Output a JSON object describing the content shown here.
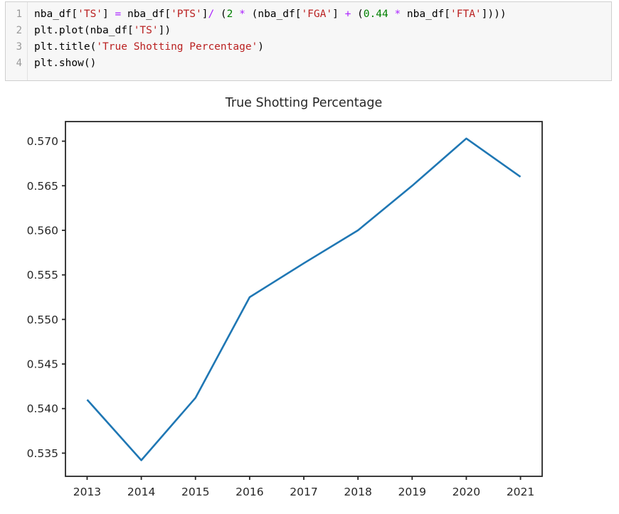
{
  "colors": {
    "plain": "#000000",
    "string": "#ba2121",
    "operator": "#aa22ff",
    "number": "#008000",
    "line_number": "#999999",
    "accent_line": "#1f77b4",
    "axis": "#262626",
    "cell_background": "#f7f7f7",
    "cell_border": "#cfcfcf"
  },
  "code_cell": {
    "lines": [
      {
        "number": "1",
        "tokens": [
          {
            "t": "nba_df[",
            "c": "plain"
          },
          {
            "t": "'TS'",
            "c": "string"
          },
          {
            "t": "] ",
            "c": "plain"
          },
          {
            "t": "=",
            "c": "operator"
          },
          {
            "t": " nba_df[",
            "c": "plain"
          },
          {
            "t": "'PTS'",
            "c": "string"
          },
          {
            "t": "]",
            "c": "plain"
          },
          {
            "t": "/",
            "c": "operator"
          },
          {
            "t": " (",
            "c": "plain"
          },
          {
            "t": "2",
            "c": "number"
          },
          {
            "t": " ",
            "c": "plain"
          },
          {
            "t": "*",
            "c": "operator"
          },
          {
            "t": " (nba_df[",
            "c": "plain"
          },
          {
            "t": "'FGA'",
            "c": "string"
          },
          {
            "t": "] ",
            "c": "plain"
          },
          {
            "t": "+",
            "c": "operator"
          },
          {
            "t": " (",
            "c": "plain"
          },
          {
            "t": "0.44",
            "c": "number"
          },
          {
            "t": " ",
            "c": "plain"
          },
          {
            "t": "*",
            "c": "operator"
          },
          {
            "t": " nba_df[",
            "c": "plain"
          },
          {
            "t": "'FTA'",
            "c": "string"
          },
          {
            "t": "])))",
            "c": "plain"
          }
        ]
      },
      {
        "number": "2",
        "tokens": [
          {
            "t": "plt.plot(nba_df[",
            "c": "plain"
          },
          {
            "t": "'TS'",
            "c": "string"
          },
          {
            "t": "])",
            "c": "plain"
          }
        ]
      },
      {
        "number": "3",
        "tokens": [
          {
            "t": "plt.title(",
            "c": "plain"
          },
          {
            "t": "'True Shotting Percentage'",
            "c": "string"
          },
          {
            "t": ")",
            "c": "plain"
          }
        ]
      },
      {
        "number": "4",
        "tokens": [
          {
            "t": "plt.show()",
            "c": "plain"
          }
        ]
      }
    ]
  },
  "chart_data": {
    "type": "line",
    "title": "True Shotting Percentage",
    "xlabel": "",
    "ylabel": "",
    "x": [
      2013,
      2014,
      2015,
      2016,
      2017,
      2018,
      2019,
      2020,
      2021
    ],
    "values": [
      0.541,
      0.5342,
      0.5412,
      0.5525,
      0.5563,
      0.56,
      0.565,
      0.5703,
      0.566
    ],
    "series_name": "nba_df['TS']",
    "xticks": [
      2013,
      2014,
      2015,
      2016,
      2017,
      2018,
      2019,
      2020,
      2021
    ],
    "xtick_labels": [
      "2013",
      "2014",
      "2015",
      "2016",
      "2017",
      "2018",
      "2019",
      "2020",
      "2021"
    ],
    "yticks": [
      0.535,
      0.54,
      0.545,
      0.55,
      0.555,
      0.56,
      0.565,
      0.57
    ],
    "ytick_labels": [
      "0.535",
      "0.540",
      "0.545",
      "0.550",
      "0.555",
      "0.560",
      "0.565",
      "0.570"
    ],
    "xlim": [
      2012.6,
      2021.4
    ],
    "ylim": [
      0.5324,
      0.5722
    ],
    "grid": false,
    "legend": null,
    "line_color": "#1f77b4"
  }
}
